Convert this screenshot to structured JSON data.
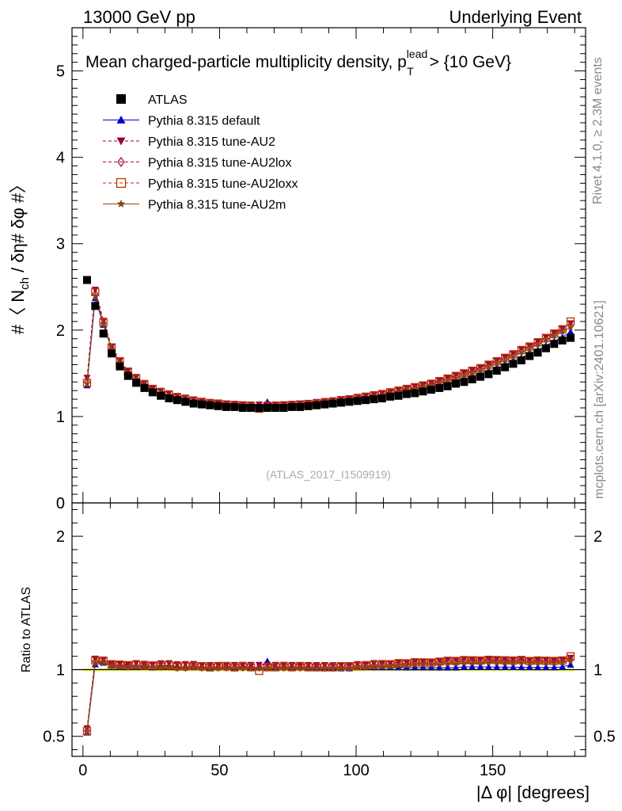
{
  "header": {
    "left": "13000 GeV pp",
    "right": "Underlying Event"
  },
  "side_labels": {
    "rivet": "Rivet 4.1.0, ≥ 2.3M events",
    "mcplots": "mcplots.cern.ch [arXiv:2401.10621]"
  },
  "analysis_id": "(ATLAS_2017_I1509919)",
  "chart_data": {
    "type": "scatter",
    "title": "Mean charged-particle multiplicity density, p",
    "title_sup": "lead",
    "title_sub": "T",
    "title_suffix": " > {10 GeV}",
    "ylabel": "#〈 N_ch / δη# δφ #〉",
    "ylabel_parts": {
      "pre": "#〈 N",
      "sub": "ch",
      "post": " / δη# δφ #〉"
    },
    "xlabel": "|Δ φ| [degrees]",
    "ratio_ylabel": "Ratio to ATLAS",
    "xlim": [
      -4,
      184
    ],
    "ylim": [
      0,
      5.5
    ],
    "ratio_ylim": [
      0.35,
      2.25
    ],
    "x_ticks": [
      0,
      50,
      100,
      150
    ],
    "y_ticks": [
      0,
      1,
      2,
      3,
      4,
      5
    ],
    "ratio_ticks": [
      0.5,
      1,
      2
    ],
    "ratio_tick_labels": [
      "0.5",
      "1",
      "2"
    ],
    "legend": [
      {
        "name": "ATLAS",
        "marker": "square",
        "color": "#000000",
        "line": "none"
      },
      {
        "name": "Pythia 8.315 default",
        "marker": "triangle-up",
        "color": "#0000cc",
        "line": "solid"
      },
      {
        "name": "Pythia 8.315 tune-AU2",
        "marker": "triangle-down",
        "color": "#990033",
        "line": "dashed"
      },
      {
        "name": "Pythia 8.315 tune-AU2lox",
        "marker": "diamond-open",
        "color": "#aa1133",
        "line": "dashed"
      },
      {
        "name": "Pythia 8.315 tune-AU2loxx",
        "marker": "square-open",
        "color": "#bb3300",
        "line": "dashed"
      },
      {
        "name": "Pythia 8.315 tune-AU2m",
        "marker": "star",
        "color": "#8b4513",
        "line": "solid"
      }
    ],
    "x": [
      1.5,
      4.5,
      7.5,
      10.5,
      13.5,
      16.5,
      19.5,
      22.5,
      25.5,
      28.5,
      31.5,
      34.5,
      37.5,
      40.5,
      43.5,
      46.5,
      49.5,
      52.5,
      55.5,
      58.5,
      61.5,
      64.5,
      67.5,
      70.5,
      73.5,
      76.5,
      79.5,
      82.5,
      85.5,
      88.5,
      91.5,
      94.5,
      97.5,
      100.5,
      103.5,
      106.5,
      109.5,
      112.5,
      115.5,
      118.5,
      121.5,
      124.5,
      127.5,
      130.5,
      133.5,
      136.5,
      139.5,
      142.5,
      145.5,
      148.5,
      151.5,
      154.5,
      157.5,
      160.5,
      163.5,
      166.5,
      169.5,
      172.5,
      175.5,
      178.5
    ],
    "atlas": [
      2.58,
      2.28,
      1.96,
      1.73,
      1.58,
      1.47,
      1.39,
      1.33,
      1.28,
      1.24,
      1.21,
      1.19,
      1.17,
      1.15,
      1.14,
      1.13,
      1.12,
      1.11,
      1.11,
      1.1,
      1.1,
      1.1,
      1.1,
      1.1,
      1.1,
      1.11,
      1.11,
      1.12,
      1.13,
      1.14,
      1.15,
      1.16,
      1.17,
      1.18,
      1.19,
      1.2,
      1.21,
      1.23,
      1.24,
      1.26,
      1.27,
      1.29,
      1.31,
      1.33,
      1.35,
      1.38,
      1.4,
      1.43,
      1.46,
      1.49,
      1.53,
      1.57,
      1.61,
      1.65,
      1.7,
      1.74,
      1.79,
      1.84,
      1.88,
      1.91
    ],
    "series": [
      {
        "name": "Pythia 8.315 default",
        "values": [
          1.36,
          2.37,
          2.06,
          1.78,
          1.62,
          1.5,
          1.42,
          1.37,
          1.3,
          1.27,
          1.25,
          1.21,
          1.19,
          1.17,
          1.16,
          1.14,
          1.14,
          1.13,
          1.12,
          1.13,
          1.12,
          1.12,
          1.17,
          1.12,
          1.12,
          1.13,
          1.13,
          1.14,
          1.15,
          1.15,
          1.16,
          1.17,
          1.18,
          1.2,
          1.21,
          1.22,
          1.23,
          1.25,
          1.26,
          1.28,
          1.29,
          1.31,
          1.33,
          1.35,
          1.37,
          1.4,
          1.43,
          1.46,
          1.49,
          1.52,
          1.56,
          1.6,
          1.64,
          1.68,
          1.73,
          1.77,
          1.82,
          1.87,
          1.92,
          1.98
        ]
      },
      {
        "name": "Pythia 8.315 tune-AU2",
        "values": [
          1.45,
          2.47,
          2.11,
          1.81,
          1.65,
          1.53,
          1.46,
          1.39,
          1.33,
          1.3,
          1.27,
          1.24,
          1.22,
          1.2,
          1.18,
          1.17,
          1.16,
          1.15,
          1.15,
          1.14,
          1.14,
          1.14,
          1.14,
          1.14,
          1.14,
          1.15,
          1.15,
          1.16,
          1.17,
          1.18,
          1.19,
          1.2,
          1.21,
          1.23,
          1.24,
          1.26,
          1.27,
          1.29,
          1.31,
          1.33,
          1.35,
          1.37,
          1.39,
          1.42,
          1.45,
          1.48,
          1.51,
          1.54,
          1.57,
          1.61,
          1.65,
          1.69,
          1.73,
          1.78,
          1.82,
          1.87,
          1.92,
          1.97,
          2.02,
          2.08
        ]
      },
      {
        "name": "Pythia 8.315 tune-AU2lox",
        "values": [
          1.4,
          2.42,
          2.08,
          1.79,
          1.63,
          1.51,
          1.43,
          1.37,
          1.31,
          1.27,
          1.24,
          1.21,
          1.19,
          1.18,
          1.16,
          1.15,
          1.14,
          1.13,
          1.13,
          1.12,
          1.12,
          1.12,
          1.12,
          1.12,
          1.12,
          1.13,
          1.13,
          1.14,
          1.15,
          1.16,
          1.17,
          1.18,
          1.19,
          1.21,
          1.22,
          1.24,
          1.25,
          1.27,
          1.29,
          1.31,
          1.33,
          1.35,
          1.37,
          1.4,
          1.43,
          1.46,
          1.49,
          1.52,
          1.55,
          1.59,
          1.63,
          1.67,
          1.71,
          1.76,
          1.8,
          1.85,
          1.9,
          1.95,
          2.0,
          2.05
        ]
      },
      {
        "name": "Pythia 8.315 tune-AU2loxx",
        "values": [
          1.39,
          2.44,
          2.09,
          1.8,
          1.64,
          1.52,
          1.44,
          1.37,
          1.32,
          1.28,
          1.25,
          1.22,
          1.2,
          1.18,
          1.17,
          1.15,
          1.15,
          1.14,
          1.13,
          1.13,
          1.12,
          1.09,
          1.12,
          1.12,
          1.13,
          1.13,
          1.14,
          1.14,
          1.15,
          1.16,
          1.17,
          1.19,
          1.2,
          1.21,
          1.23,
          1.24,
          1.26,
          1.28,
          1.3,
          1.32,
          1.34,
          1.36,
          1.38,
          1.41,
          1.44,
          1.47,
          1.5,
          1.53,
          1.56,
          1.6,
          1.64,
          1.68,
          1.72,
          1.77,
          1.81,
          1.86,
          1.91,
          1.96,
          2.01,
          2.1
        ]
      },
      {
        "name": "Pythia 8.315 tune-AU2m",
        "values": [
          1.38,
          2.4,
          2.07,
          1.78,
          1.61,
          1.49,
          1.42,
          1.36,
          1.3,
          1.26,
          1.23,
          1.2,
          1.18,
          1.17,
          1.15,
          1.14,
          1.13,
          1.12,
          1.12,
          1.11,
          1.11,
          1.11,
          1.11,
          1.11,
          1.11,
          1.12,
          1.12,
          1.13,
          1.14,
          1.15,
          1.16,
          1.17,
          1.18,
          1.2,
          1.21,
          1.23,
          1.24,
          1.26,
          1.28,
          1.3,
          1.32,
          1.34,
          1.36,
          1.38,
          1.41,
          1.44,
          1.47,
          1.5,
          1.53,
          1.57,
          1.61,
          1.65,
          1.69,
          1.74,
          1.78,
          1.83,
          1.88,
          1.93,
          1.98,
          2.03
        ]
      }
    ],
    "ratio_band_color": "#eeff66"
  }
}
